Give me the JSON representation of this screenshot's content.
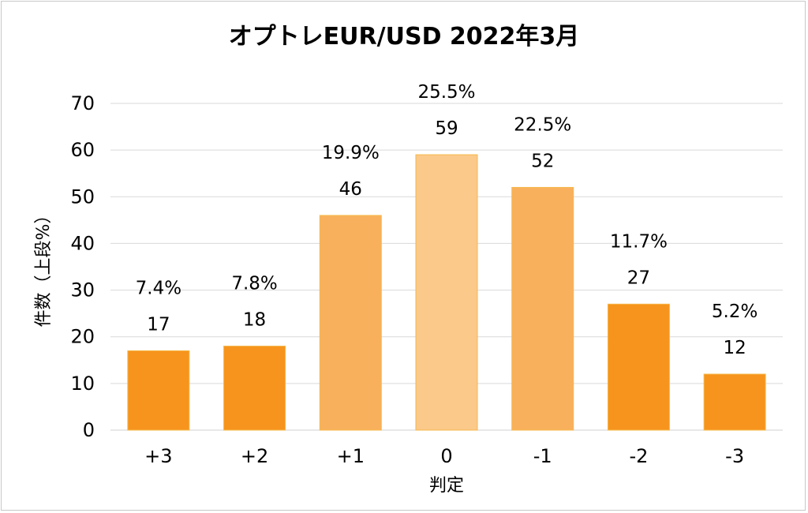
{
  "chart_data": {
    "type": "bar",
    "title": "オプトレEUR/USD 2022年3月",
    "xlabel": "判定",
    "ylabel": "件数（上段%）",
    "categories": [
      "+3",
      "+2",
      "+1",
      "0",
      "-1",
      "-2",
      "-3"
    ],
    "series": [
      {
        "values": [
          17,
          18,
          46,
          59,
          52,
          27,
          12
        ],
        "percent_labels": [
          "7.4%",
          "7.8%",
          "19.9%",
          "25.5%",
          "22.5%",
          "11.7%",
          "5.2%"
        ]
      }
    ],
    "bar_colors": [
      "#f7941d",
      "#f7941d",
      "#f9b05c",
      "#fbc98a",
      "#f9b05c",
      "#f7941d",
      "#f7941d"
    ],
    "ylim": [
      0,
      70
    ],
    "yticks": [
      0,
      10,
      20,
      30,
      40,
      50,
      60,
      70
    ],
    "grid": true,
    "legend": "none"
  }
}
